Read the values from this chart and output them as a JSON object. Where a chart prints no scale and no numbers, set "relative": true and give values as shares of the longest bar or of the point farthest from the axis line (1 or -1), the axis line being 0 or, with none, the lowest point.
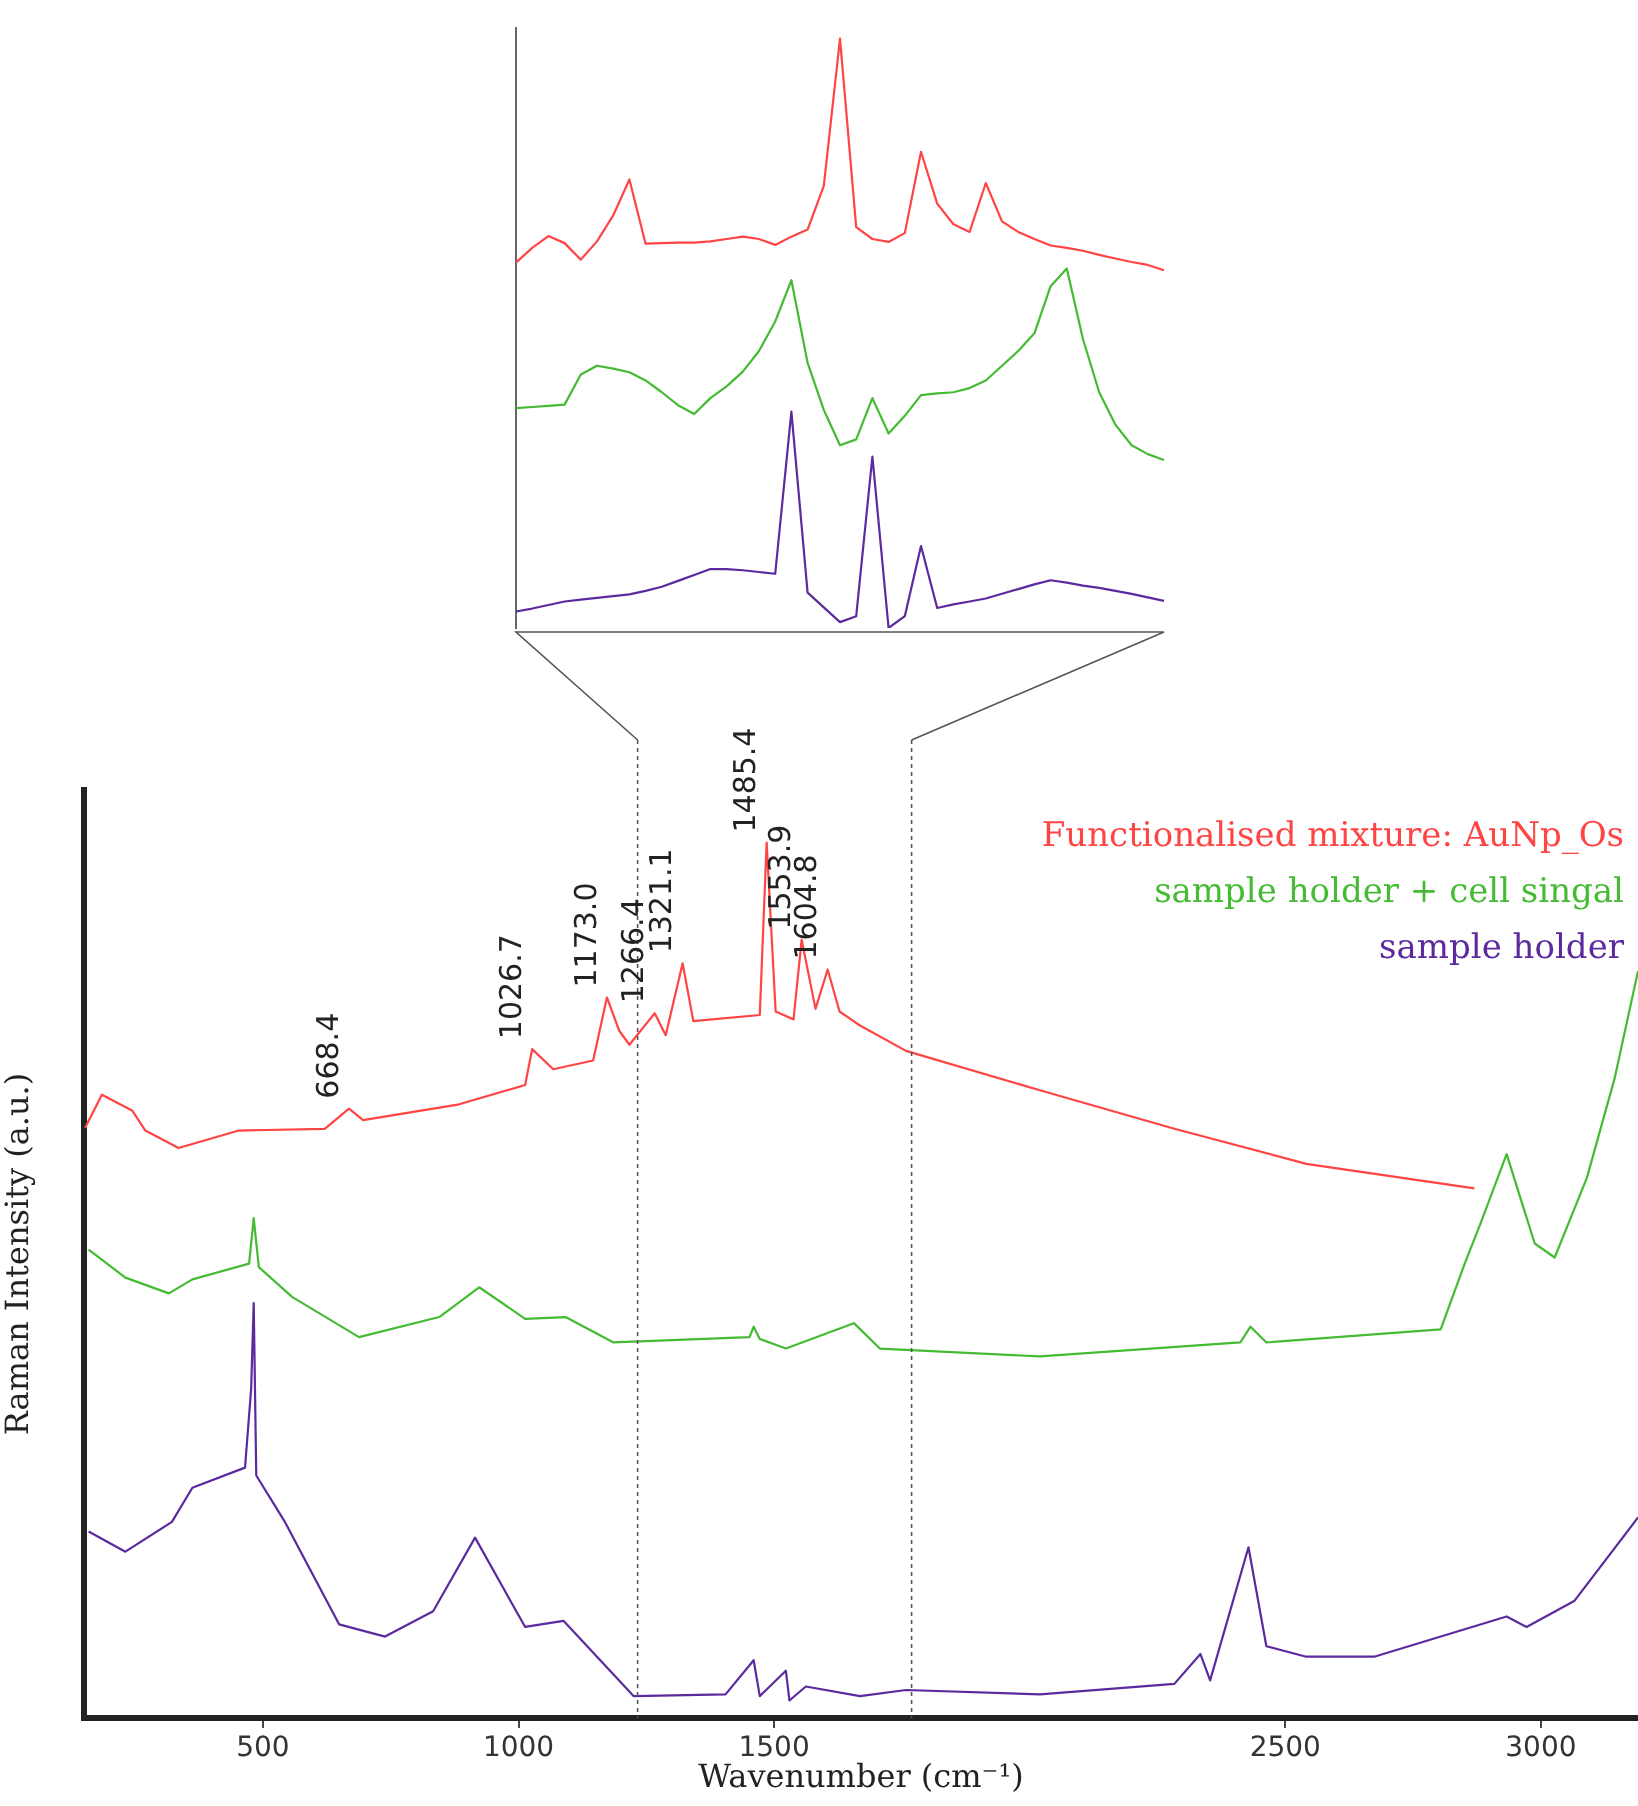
{
  "chart_data": [
    {
      "type": "line",
      "relative": true,
      "tick_labels": false,
      "categories": [
        null,
        null,
        null,
        null,
        null,
        null,
        null,
        null,
        null,
        null,
        null,
        null,
        null,
        null,
        null,
        null,
        null,
        null,
        null,
        null,
        null,
        null,
        null,
        null,
        null,
        null,
        null,
        null,
        null,
        null,
        null,
        null,
        null,
        null,
        null,
        null,
        null,
        null,
        null,
        null,
        null
      ],
      "series": [
        {
          "color": "#ff4444",
          "values": [
            0.62,
            0.645,
            0.665,
            0.653,
            0.625,
            0.656,
            0.7,
            0.761,
            0.652,
            0.653,
            0.654,
            0.654,
            0.656,
            0.66,
            0.664,
            0.66,
            0.65,
            0.664,
            0.676,
            0.75,
            1.0,
            0.68,
            0.66,
            0.655,
            0.67,
            0.808,
            0.72,
            0.685,
            0.672,
            0.755,
            0.69,
            0.672,
            0.66,
            0.649,
            0.645,
            0.64,
            0.633,
            0.627,
            0.621,
            0.616,
            0.607
          ]
        },
        {
          "color": "#44bb33",
          "values": [
            0.373,
            0.375,
            0.377,
            0.379,
            0.43,
            0.445,
            0.44,
            0.434,
            0.42,
            0.4,
            0.378,
            0.363,
            0.39,
            0.41,
            0.435,
            0.47,
            0.52,
            0.59,
            0.45,
            0.37,
            0.31,
            0.32,
            0.39,
            0.33,
            0.36,
            0.395,
            0.398,
            0.4,
            0.407,
            0.42,
            0.445,
            0.47,
            0.5,
            0.58,
            0.61,
            0.49,
            0.4,
            0.345,
            0.31,
            0.295,
            0.285
          ]
        },
        {
          "color": "#5b2a9e",
          "values": [
            0.028,
            0.033,
            0.039,
            0.045,
            0.048,
            0.051,
            0.054,
            0.057,
            0.063,
            0.07,
            0.08,
            0.09,
            0.1,
            0.1,
            0.098,
            0.095,
            0.092,
            0.367,
            0.06,
            0.035,
            0.01,
            0.02,
            0.291,
            0.0,
            0.02,
            0.139,
            0.034,
            0.04,
            0.045,
            0.05,
            0.058,
            0.066,
            0.074,
            0.081,
            0.077,
            0.072,
            0.068,
            0.063,
            0.058,
            0.052,
            0.046
          ]
        }
      ]
    },
    {
      "type": "line",
      "relative": true,
      "xlabel": "Wavenumber (cm⁻¹)",
      "ylabel": "Raman Intensity (a.u.)",
      "xlim": [
        150,
        3190
      ],
      "xticks": [
        500,
        1000,
        1500,
        2500,
        3000
      ],
      "legend": "top right",
      "ref_lines": [
        {
          "axis": "x",
          "value": 1233,
          "color": "#555555",
          "line_style": "dashed"
        },
        {
          "axis": "x",
          "value": 1769,
          "color": "#555555",
          "line_style": "dashed"
        }
      ],
      "annotations": [
        {
          "text": "668.4",
          "x": 668.4,
          "y": 0.696
        },
        {
          "text": "1026.7",
          "x": 1026.7,
          "y": 0.764
        },
        {
          "text": "1173.0",
          "x": 1173.0,
          "y": 0.823
        },
        {
          "text": "1266.4",
          "x": 1266.4,
          "y": 0.805
        },
        {
          "text": "1321.1",
          "x": 1321.1,
          "y": 0.862
        },
        {
          "text": "1485.4",
          "x": 1485.4,
          "y": 1.0
        },
        {
          "text": "1553.9",
          "x": 1553.9,
          "y": 0.889
        },
        {
          "text": "1604.8",
          "x": 1604.8,
          "y": 0.855
        }
      ],
      "series": [
        {
          "name": "Functionalised mixture: AuNp_Os",
          "color": "#ff4444",
          "x": [
            152,
            185,
            244,
            270,
            335,
            453,
            621,
            668.4,
            696,
            884,
            1013,
            1026.7,
            1068,
            1146,
            1173,
            1197,
            1217,
            1266.4,
            1288,
            1321.1,
            1342,
            1472,
            1485.4,
            1503,
            1538,
            1553.9,
            1581,
            1604.8,
            1628,
            1668,
            1758,
            2020,
            2283,
            2541,
            2870
          ],
          "values": [
            0.674,
            0.712,
            0.694,
            0.671,
            0.651,
            0.671,
            0.673,
            0.696,
            0.683,
            0.701,
            0.723,
            0.764,
            0.741,
            0.751,
            0.823,
            0.785,
            0.769,
            0.805,
            0.78,
            0.862,
            0.796,
            0.803,
            1.0,
            0.807,
            0.798,
            0.889,
            0.81,
            0.855,
            0.807,
            0.791,
            0.762,
            0.717,
            0.673,
            0.633,
            0.605
          ]
        },
        {
          "name": "sample holder + cell singal",
          "color": "#44bb33",
          "x": [
            159,
            231,
            316,
            362,
            473,
            482,
            492,
            557,
            688,
            845,
            923,
            1013,
            1092,
            1186,
            1452,
            1460,
            1472,
            1523,
            1656,
            1707,
            2020,
            2412,
            2432,
            2463,
            2804,
            2851,
            2882,
            2933,
            2988,
            3027,
            3090,
            3144,
            3190
          ],
          "values": [
            0.535,
            0.503,
            0.485,
            0.501,
            0.519,
            0.571,
            0.515,
            0.481,
            0.435,
            0.458,
            0.492,
            0.456,
            0.458,
            0.429,
            0.435,
            0.447,
            0.433,
            0.422,
            0.451,
            0.422,
            0.413,
            0.429,
            0.447,
            0.429,
            0.444,
            0.519,
            0.565,
            0.644,
            0.542,
            0.526,
            0.617,
            0.73,
            0.853
          ]
        },
        {
          "name": "sample holder",
          "color": "#5b2a9e",
          "x": [
            159,
            231,
            322,
            362,
            465,
            477,
            482,
            487,
            543,
            649,
            739,
            833,
            915,
            1013,
            1088,
            1225,
            1405,
            1460,
            1472,
            1523,
            1530,
            1562,
            1668,
            1758,
            2020,
            2283,
            2334,
            2353,
            2428,
            2463,
            2541,
            2674,
            2933,
            2972,
            3066,
            3190
          ],
          "values": [
            0.213,
            0.19,
            0.224,
            0.263,
            0.286,
            0.376,
            0.474,
            0.277,
            0.224,
            0.107,
            0.093,
            0.122,
            0.206,
            0.104,
            0.111,
            0.025,
            0.027,
            0.066,
            0.025,
            0.054,
            0.02,
            0.036,
            0.025,
            0.032,
            0.027,
            0.039,
            0.073,
            0.043,
            0.195,
            0.082,
            0.07,
            0.07,
            0.116,
            0.104,
            0.134,
            0.229
          ]
        }
      ]
    }
  ]
}
